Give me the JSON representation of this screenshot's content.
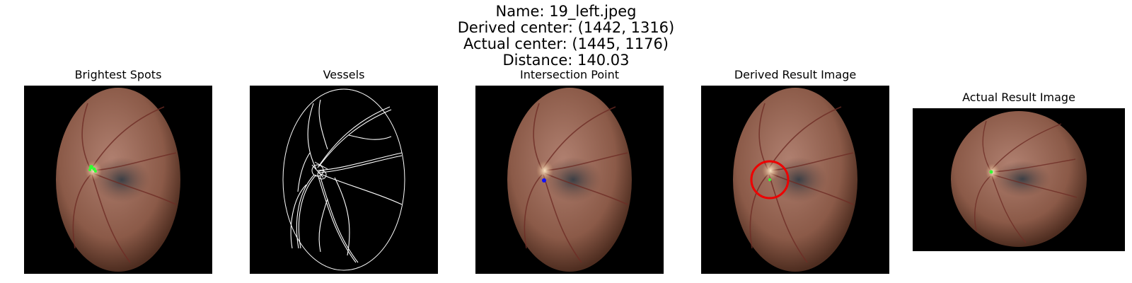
{
  "figure": {
    "suptitle": {
      "line1": "Name: 19_left.jpeg",
      "line2": "Derived center: (1442, 1316)",
      "line3": "Actual center: (1445, 1176)",
      "line4": "Distance: 140.03"
    }
  },
  "panels": [
    {
      "title": "Brightest Spots",
      "overlay": "green bright-spot markers on optic disc"
    },
    {
      "title": "Vessels",
      "overlay": "white edge map of retinal vessels"
    },
    {
      "title": "Intersection Point",
      "overlay": "blue point"
    },
    {
      "title": "Derived Result Image",
      "overlay": "red circle around derived center"
    },
    {
      "title": "Actual Result Image",
      "overlay": "green marker at actual center"
    }
  ],
  "colors": {
    "background": "#000000",
    "retina_center": "#a9796a",
    "retina_edge": "#5a3526",
    "optic_disc": "#f1cfa6",
    "marker_green": "#33ff33",
    "marker_blue": "#1010ff",
    "circle_red": "#ee0000",
    "vessel_line": "#ffffff"
  }
}
